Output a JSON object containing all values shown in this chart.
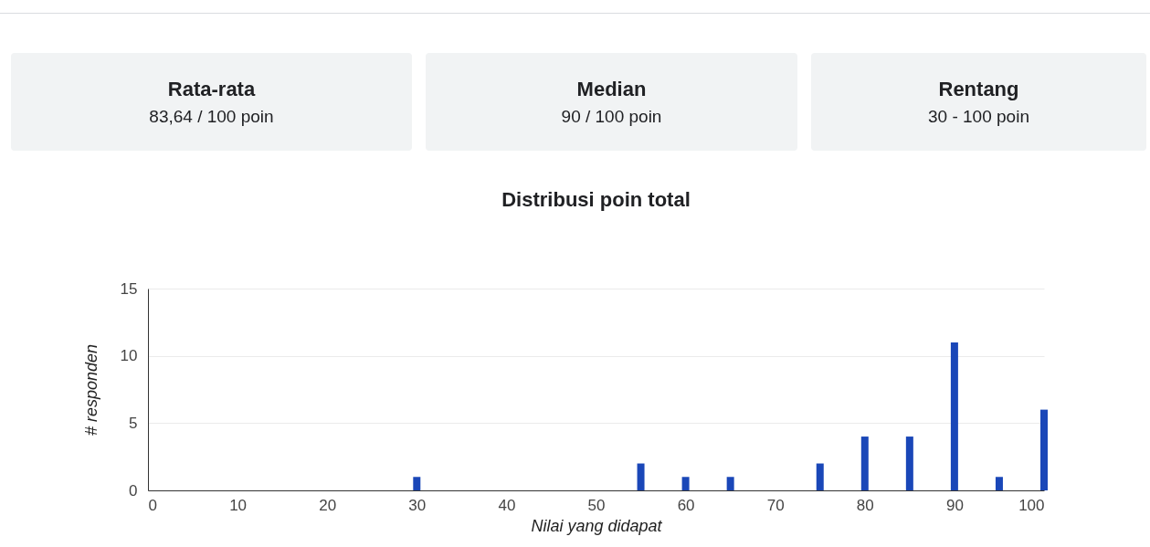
{
  "chart_data": {
    "type": "bar",
    "title": "Distribusi poin total",
    "xlabel": "Nilai yang didapat",
    "ylabel": "# responden",
    "x": [
      30,
      55,
      60,
      65,
      75,
      80,
      85,
      90,
      95,
      100
    ],
    "values": [
      1,
      2,
      1,
      1,
      2,
      4,
      4,
      11,
      1,
      6
    ],
    "color": "#1a47b8",
    "xlim": [
      0,
      100
    ],
    "xticks": [
      0,
      10,
      20,
      30,
      40,
      50,
      60,
      70,
      80,
      90,
      100
    ],
    "ylim": [
      0,
      15
    ],
    "yticks": [
      0,
      5,
      10,
      15
    ],
    "grid": "y",
    "annotations": [
      "Rata-rata",
      "83,64 / 100 poin",
      "Median",
      "90 / 100 poin",
      "Rentang",
      "30 - 100 poin"
    ]
  }
}
